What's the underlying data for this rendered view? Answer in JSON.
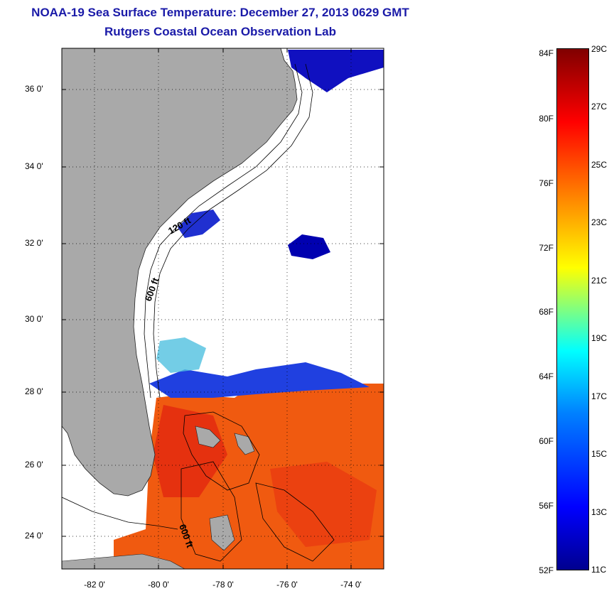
{
  "title": "NOAA-19 Sea Surface Temperature:  December 27, 2013 0629 GMT",
  "subtitle": "Rutgers Coastal Ocean Observation Lab",
  "map": {
    "lat_labels": [
      "36 0'",
      "34 0'",
      "32 0'",
      "30 0'",
      "28 0'",
      "26 0'",
      "24 0'"
    ],
    "lon_labels": [
      "-82 0'",
      "-80 0'",
      "-78 0'",
      "-76 0'",
      "-74 0'"
    ],
    "contour_labels": [
      "120 ft",
      "600 ft",
      "600 ft"
    ],
    "land_color": "#a9a9a9",
    "cloud_color": "#ffffff"
  },
  "colorbar": {
    "fahrenheit_labels": [
      "84F",
      "80F",
      "76F",
      "72F",
      "68F",
      "64F",
      "60F",
      "56F",
      "52F"
    ],
    "celsius_labels": [
      "29C",
      "27C",
      "25C",
      "23C",
      "21C",
      "19C",
      "17C",
      "15C",
      "13C",
      "11C"
    ],
    "min_c": 11,
    "max_c": 29,
    "colors": [
      "#00008f",
      "#0000ff",
      "#0080ff",
      "#00ffff",
      "#80ff80",
      "#ffff00",
      "#ff8000",
      "#ff0000",
      "#800000"
    ]
  }
}
